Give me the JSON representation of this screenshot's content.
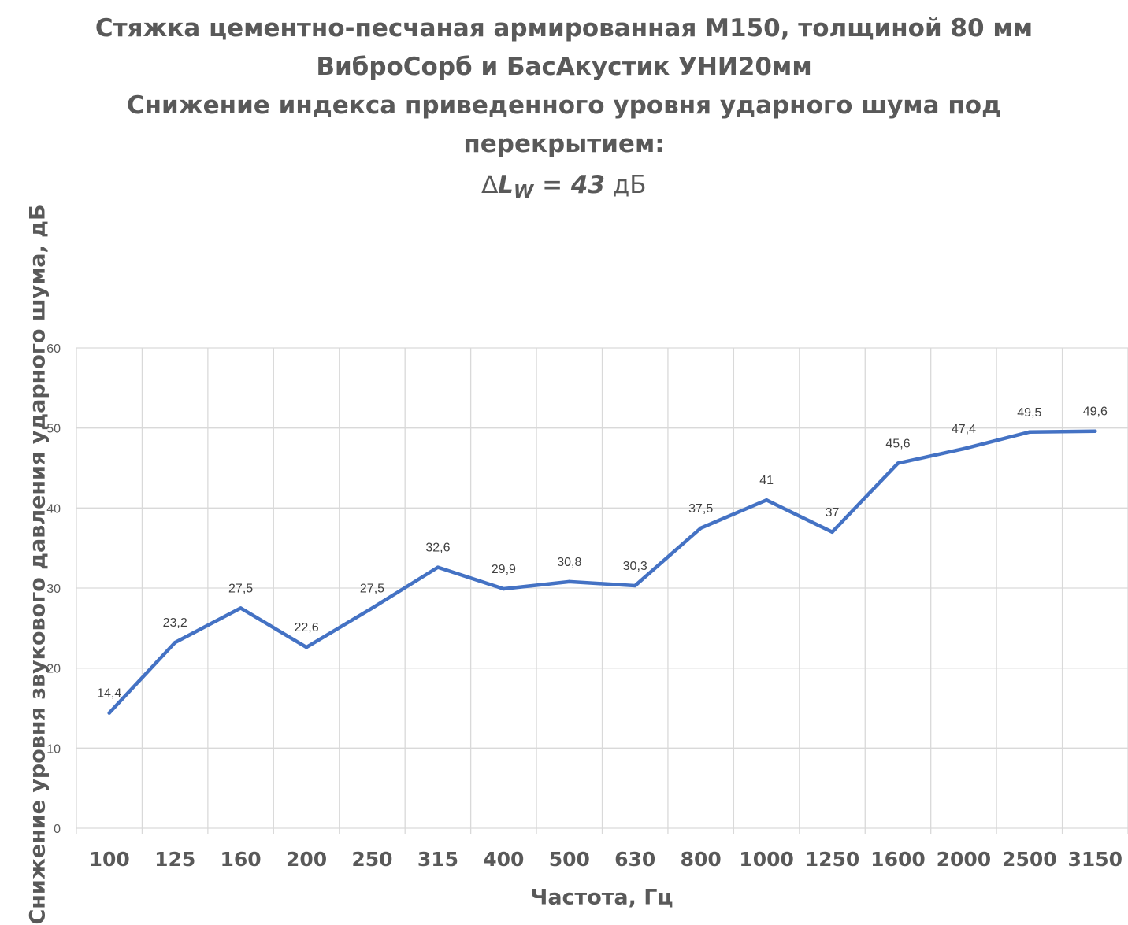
{
  "chart_data": {
    "type": "line",
    "title_lines": [
      "Стяжка цементно-песчаная армированная М150, толщиной  80 мм",
      "ВиброСорб и БасАкустик УНИ20мм",
      "Снижение индекса приведенного уровня  ударного шума под",
      "перекрытием:"
    ],
    "index": {
      "symbol": "∆",
      "letter": "L",
      "subscript": "W",
      "equals": "=",
      "value": "43",
      "unit": "дБ"
    },
    "xlabel": "Частота, Гц",
    "ylabel": "Снижение уровня  звукового давления ударного шума, дБ",
    "categories": [
      "100",
      "125",
      "160",
      "200",
      "250",
      "315",
      "400",
      "500",
      "630",
      "800",
      "1000",
      "1250",
      "1600",
      "2000",
      "2500",
      "3150"
    ],
    "series": [
      {
        "values": [
          14.4,
          23.2,
          27.5,
          22.6,
          27.5,
          32.6,
          29.9,
          30.8,
          30.3,
          37.5,
          41,
          37,
          45.6,
          47.4,
          49.5,
          49.6
        ],
        "labels": [
          "14,4",
          "23,2",
          "27,5",
          "22,6",
          "27,5",
          "32,6",
          "29,9",
          "30,8",
          "30,3",
          "37,5",
          "41",
          "37",
          "45,6",
          "47,4",
          "49,5",
          "49,6"
        ],
        "color": "#4472C4"
      }
    ],
    "ylim": [
      0,
      60
    ],
    "yticks": [
      0,
      10,
      20,
      30,
      40,
      50,
      60
    ],
    "grid": true,
    "legend": "none"
  },
  "colors": {
    "line": "#4472C4",
    "grid": "#D9D9D9",
    "text": "#595959",
    "label_text": "#404040"
  }
}
